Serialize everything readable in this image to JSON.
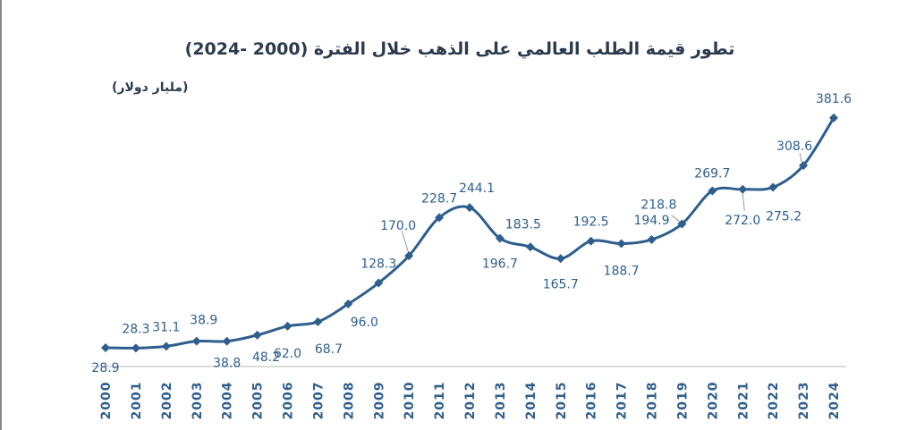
{
  "chart_data": {
    "type": "line",
    "title": "تطور قيمة الطلب العالمي على الذهب خلال الفترة (2000 -2024)",
    "ylabel": "(مليار دولار)",
    "xlabel": "",
    "categories": [
      "2000",
      "2001",
      "2002",
      "2003",
      "2004",
      "2005",
      "2006",
      "2007",
      "2008",
      "2009",
      "2010",
      "2011",
      "2012",
      "2013",
      "2014",
      "2015",
      "2016",
      "2017",
      "2018",
      "2019",
      "2020",
      "2021",
      "2022",
      "2023",
      "2024"
    ],
    "values": [
      28.9,
      28.3,
      31.1,
      38.9,
      38.8,
      48.2,
      62.0,
      68.7,
      96.0,
      128.3,
      170.0,
      228.7,
      244.1,
      196.7,
      183.5,
      165.7,
      192.5,
      188.7,
      194.9,
      218.8,
      269.7,
      272.0,
      275.2,
      308.6,
      381.6
    ],
    "labels": [
      "28.9",
      "28.3",
      "31.1",
      "38.9",
      "38.8",
      "48.2",
      "62.0",
      "68.7",
      "96.0",
      "128.3",
      "170.0",
      "228.7",
      "244.1",
      "196.7",
      "183.5",
      "165.7",
      "192.5",
      "188.7",
      "194.9",
      "218.8",
      "269.7",
      "272.0",
      "275.2",
      "308.6",
      "381.6"
    ],
    "ylim": [
      0,
      400
    ],
    "grid": false,
    "legend": "none",
    "marker": "diamond",
    "color": "#2e5e8e"
  }
}
